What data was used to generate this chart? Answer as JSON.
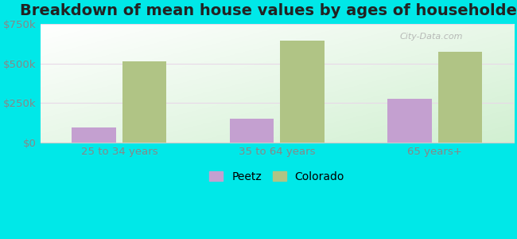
{
  "title": "Breakdown of mean house values by ages of householders",
  "categories": [
    "25 to 34 years",
    "35 to 64 years",
    "65 years+"
  ],
  "peetz_values": [
    95000,
    150000,
    275000
  ],
  "colorado_values": [
    515000,
    645000,
    575000
  ],
  "peetz_color": "#c4a0d0",
  "colorado_color": "#b0c485",
  "background_outer": "#00e8e8",
  "ylim": [
    0,
    750000
  ],
  "yticks": [
    0,
    250000,
    500000,
    750000
  ],
  "ytick_labels": [
    "$0",
    "$250k",
    "$500k",
    "$750k"
  ],
  "legend_labels": [
    "Peetz",
    "Colorado"
  ],
  "bar_width": 0.28,
  "title_fontsize": 14,
  "axis_fontsize": 9.5,
  "legend_fontsize": 10,
  "grid_color": "#e8d8e8",
  "watermark": "City-Data.com"
}
